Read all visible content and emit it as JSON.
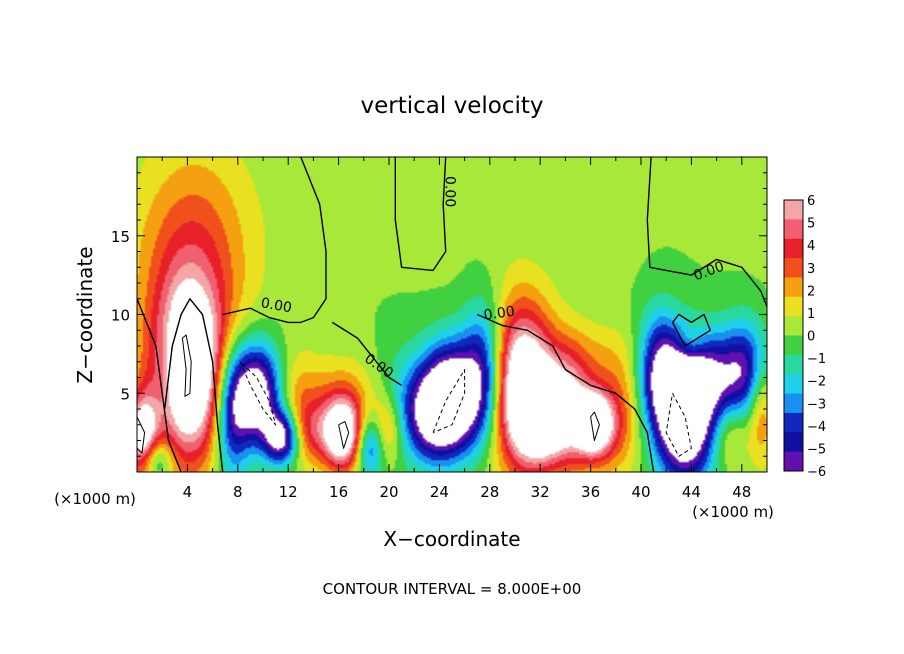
{
  "chart_data": {
    "type": "heatmap",
    "title": "vertical velocity",
    "xlabel": "X−coordinate",
    "ylabel": "Z−coordinate",
    "x_unit_left": "(×1000 m)",
    "x_unit_right": "(×1000 m)",
    "footnote": "CONTOUR INTERVAL = 8.000E+00",
    "xlim": [
      0,
      50
    ],
    "ylim": [
      0,
      20
    ],
    "x_ticks": [
      "4",
      "8",
      "12",
      "16",
      "20",
      "24",
      "28",
      "32",
      "36",
      "40",
      "44",
      "48"
    ],
    "y_ticks": [
      "5",
      "10",
      "15"
    ],
    "contour_label": "0.00",
    "colorbar": {
      "range": [
        -6,
        6
      ],
      "labels": [
        "6",
        "5",
        "4",
        "3",
        "2",
        "1",
        "0",
        "−1",
        "−2",
        "−3",
        "−4",
        "−5",
        "−6"
      ],
      "colors": [
        "#f4a6a6",
        "#f06070",
        "#e8202a",
        "#f0501c",
        "#f5a010",
        "#e8e020",
        "#a8e838",
        "#40d040",
        "#28d8a0",
        "#20d0e8",
        "#1890f0",
        "#1028c0",
        "#1010a0",
        "#6010b0"
      ]
    },
    "features": [
      {
        "x": 4.0,
        "z": 6.3,
        "w": 9.0,
        "sx": 2.0,
        "sz": 3.8
      },
      {
        "x": 0.4,
        "z": 2.3,
        "w": 7.0,
        "sx": 0.9,
        "sz": 1.8
      },
      {
        "x": 1.5,
        "z": 0.8,
        "w": -3.5,
        "sx": 0.9,
        "sz": 1.0
      },
      {
        "x": 2.4,
        "z": 6.5,
        "w": -2.0,
        "sx": 0.8,
        "sz": 2.5
      },
      {
        "x": 4.5,
        "z": 12.0,
        "w": 2.5,
        "sx": 2.8,
        "sz": 5.5
      },
      {
        "x": 7.5,
        "z": 3.5,
        "w": -5.0,
        "sx": 1.0,
        "sz": 3.0
      },
      {
        "x": 9.5,
        "z": 5.0,
        "w": -8.5,
        "sx": 1.4,
        "sz": 2.2
      },
      {
        "x": 11.5,
        "z": 2.2,
        "w": -7.5,
        "sx": 1.0,
        "sz": 1.2
      },
      {
        "x": 12.5,
        "z": 5.0,
        "w": 1.8,
        "sx": 1.5,
        "sz": 2.0
      },
      {
        "x": 13.5,
        "z": 2.5,
        "w": 3.0,
        "sx": 1.3,
        "sz": 1.5
      },
      {
        "x": 16.3,
        "z": 2.4,
        "w": 8.0,
        "sx": 1.1,
        "sz": 1.6
      },
      {
        "x": 16.5,
        "z": 4.5,
        "w": 2.0,
        "sx": 2.0,
        "sz": 2.0
      },
      {
        "x": 18.5,
        "z": 1.7,
        "w": -4.5,
        "sx": 0.8,
        "sz": 1.4
      },
      {
        "x": 19.8,
        "z": 2.7,
        "w": 3.0,
        "sx": 0.9,
        "sz": 1.5
      },
      {
        "x": 21.0,
        "z": 4.5,
        "w": -1.5,
        "sx": 1.5,
        "sz": 2.5
      },
      {
        "x": 23.3,
        "z": 3.5,
        "w": -4.5,
        "sx": 1.5,
        "sz": 2.0
      },
      {
        "x": 25.0,
        "z": 4.7,
        "w": -9.0,
        "sx": 1.7,
        "sz": 2.4
      },
      {
        "x": 27.6,
        "z": 6.5,
        "w": -5.0,
        "sx": 1.2,
        "sz": 3.0
      },
      {
        "x": 30.5,
        "z": 5.5,
        "w": 8.5,
        "sx": 1.8,
        "sz": 3.5
      },
      {
        "x": 32.2,
        "z": 3.5,
        "w": 7.0,
        "sx": 1.4,
        "sz": 2.0
      },
      {
        "x": 34.5,
        "z": 4.0,
        "w": 5.0,
        "sx": 1.2,
        "sz": 2.5
      },
      {
        "x": 36.3,
        "z": 3.0,
        "w": 8.0,
        "sx": 1.0,
        "sz": 1.4
      },
      {
        "x": 38.0,
        "z": 3.5,
        "w": 3.0,
        "sx": 1.5,
        "sz": 2.5
      },
      {
        "x": 41.5,
        "z": 6.5,
        "w": -5.5,
        "sx": 1.2,
        "sz": 2.5
      },
      {
        "x": 43.5,
        "z": 3.5,
        "w": -10.0,
        "sx": 1.6,
        "sz": 2.8
      },
      {
        "x": 45.5,
        "z": 6.0,
        "w": -4.5,
        "sx": 1.8,
        "sz": 2.0
      },
      {
        "x": 48.5,
        "z": 6.5,
        "w": -5.0,
        "sx": 1.4,
        "sz": 2.2
      },
      {
        "x": 49.5,
        "z": 4.5,
        "w": 3.5,
        "sx": 0.8,
        "sz": 2.5
      },
      {
        "x": 44.0,
        "z": 8.2,
        "w": 1.5,
        "sx": 0.8,
        "sz": 0.8
      },
      {
        "x": 47.0,
        "z": 2.5,
        "w": 2.0,
        "sx": 1.0,
        "sz": 1.5
      },
      {
        "x": 36.0,
        "z": 7.5,
        "w": 1.0,
        "sx": 3.0,
        "sz": 1.5
      }
    ],
    "contours": [
      {
        "kind": "zero",
        "points": [
          [
            0,
            11
          ],
          [
            1.5,
            8
          ],
          [
            2.5,
            2
          ],
          [
            3.5,
            0
          ]
        ]
      },
      {
        "kind": "zero",
        "points": [
          [
            2.2,
            4
          ],
          [
            2.8,
            8
          ],
          [
            3.5,
            10
          ],
          [
            4.2,
            11
          ],
          [
            5.2,
            10
          ],
          [
            6.0,
            7
          ],
          [
            6.4,
            3
          ],
          [
            6.8,
            0
          ]
        ]
      },
      {
        "kind": "zero",
        "points": [
          [
            6.8,
            10
          ],
          [
            9.0,
            10.4
          ],
          [
            10.5,
            9.8
          ],
          [
            12.0,
            9.5
          ],
          [
            13.0,
            9.5
          ],
          [
            14.0,
            9.8
          ],
          [
            15.0,
            11
          ],
          [
            15.0,
            14
          ],
          [
            14.5,
            17
          ],
          [
            13.0,
            20
          ]
        ]
      },
      {
        "kind": "zero",
        "points": [
          [
            15.5,
            9.5
          ],
          [
            17.5,
            8.5
          ],
          [
            19.0,
            7.0
          ],
          [
            20.0,
            6.0
          ],
          [
            21.0,
            5.5
          ]
        ]
      },
      {
        "kind": "zero",
        "points": [
          [
            20.5,
            20
          ],
          [
            20.5,
            16
          ],
          [
            21.0,
            13
          ],
          [
            23.5,
            12.8
          ],
          [
            24.5,
            14
          ],
          [
            24.3,
            17
          ],
          [
            24.5,
            20
          ]
        ]
      },
      {
        "kind": "zero",
        "points": [
          [
            27.0,
            10
          ],
          [
            29.0,
            9.3
          ],
          [
            31.0,
            9.0
          ],
          [
            33.0,
            8.0
          ],
          [
            34.0,
            6.5
          ],
          [
            36.0,
            5.5
          ],
          [
            38.0,
            5.0
          ],
          [
            39.5,
            4.0
          ],
          [
            40.5,
            2.5
          ],
          [
            41.0,
            0
          ]
        ]
      },
      {
        "kind": "zero",
        "points": [
          [
            40.8,
            20
          ],
          [
            40.5,
            16
          ],
          [
            40.7,
            13
          ],
          [
            42.0,
            12.8
          ],
          [
            44.0,
            12.5
          ],
          [
            46.0,
            13.5
          ],
          [
            48.0,
            13.0
          ],
          [
            49.5,
            11.5
          ],
          [
            50,
            10.5
          ]
        ]
      },
      {
        "kind": "zero",
        "points": [
          [
            42.5,
            9.5
          ],
          [
            43.5,
            8.0
          ],
          [
            44.5,
            8.5
          ],
          [
            45.5,
            9.0
          ],
          [
            45.0,
            10.0
          ],
          [
            44.0,
            9.5
          ],
          [
            43.0,
            10.0
          ],
          [
            42.5,
            9.5
          ]
        ]
      },
      {
        "kind": "neg",
        "points": [
          [
            8.2,
            7.0
          ],
          [
            9.0,
            5.5
          ],
          [
            10.0,
            4.0
          ],
          [
            11.0,
            3.0
          ],
          [
            10.5,
            4.5
          ],
          [
            9.5,
            6.0
          ],
          [
            8.2,
            7.0
          ]
        ]
      },
      {
        "kind": "neg",
        "points": [
          [
            23.5,
            2.5
          ],
          [
            24.5,
            4.5
          ],
          [
            26.0,
            6.5
          ],
          [
            26.0,
            5.0
          ],
          [
            25.0,
            3.0
          ],
          [
            23.5,
            2.5
          ]
        ]
      },
      {
        "kind": "neg",
        "points": [
          [
            42.5,
            5.0
          ],
          [
            43.5,
            3.5
          ],
          [
            44.0,
            1.5
          ],
          [
            43.0,
            1.0
          ],
          [
            42.0,
            2.5
          ],
          [
            42.5,
            5.0
          ]
        ]
      },
      {
        "kind": "pos",
        "points": [
          [
            3.6,
            8.5
          ],
          [
            3.9,
            6.5
          ],
          [
            3.8,
            4.8
          ],
          [
            4.2,
            5.0
          ],
          [
            4.3,
            7.0
          ],
          [
            3.9,
            8.7
          ],
          [
            3.6,
            8.5
          ]
        ]
      },
      {
        "kind": "pos",
        "points": [
          [
            16.0,
            3.0
          ],
          [
            16.4,
            1.5
          ],
          [
            16.8,
            2.5
          ],
          [
            16.5,
            3.2
          ],
          [
            16.0,
            3.0
          ]
        ]
      },
      {
        "kind": "pos",
        "points": [
          [
            36.0,
            3.5
          ],
          [
            36.3,
            2.0
          ],
          [
            36.7,
            3.0
          ],
          [
            36.3,
            3.8
          ],
          [
            36.0,
            3.5
          ]
        ]
      },
      {
        "kind": "pos",
        "points": [
          [
            0,
            3.5
          ],
          [
            0.6,
            2.5
          ],
          [
            0.4,
            1.2
          ],
          [
            0,
            1.5
          ]
        ]
      }
    ],
    "contour_labels": [
      {
        "x": 11.0,
        "z": 10.3,
        "rotate": 10
      },
      {
        "x": 19.0,
        "z": 6.5,
        "rotate": 35
      },
      {
        "x": 28.8,
        "z": 9.8,
        "rotate": -8
      },
      {
        "x": 45.5,
        "z": 12.5,
        "rotate": -20
      },
      {
        "x": 24.5,
        "z": 17.8,
        "rotate": 90
      }
    ]
  }
}
